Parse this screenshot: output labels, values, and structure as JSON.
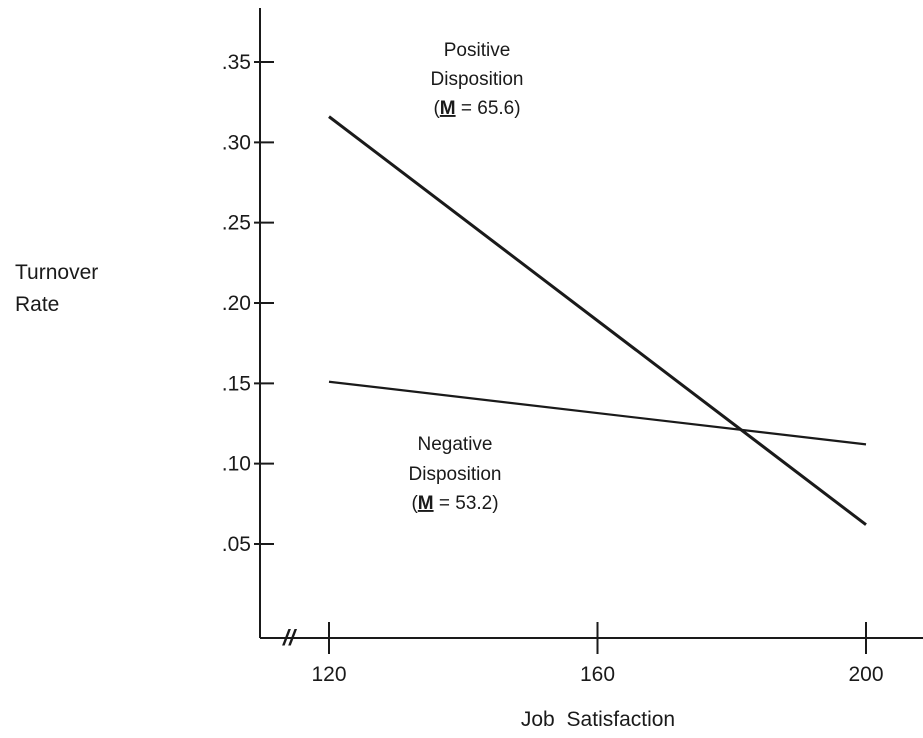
{
  "chart_data": {
    "type": "line",
    "title": "",
    "xlabel": "Job Satisfaction",
    "ylabel": [
      "Turnover",
      "Rate"
    ],
    "xlim": [
      120,
      200
    ],
    "ylim": [
      0.05,
      0.35
    ],
    "x_ticks": [
      {
        "value": 120,
        "label": "120"
      },
      {
        "value": 160,
        "label": "160"
      },
      {
        "value": 200,
        "label": "200"
      }
    ],
    "y_ticks": [
      {
        "value": 0.05,
        "label": ".05"
      },
      {
        "value": 0.1,
        "label": ".10"
      },
      {
        "value": 0.15,
        "label": ".15"
      },
      {
        "value": 0.2,
        "label": ".20"
      },
      {
        "value": 0.25,
        "label": ".25"
      },
      {
        "value": 0.3,
        "label": ".30"
      },
      {
        "value": 0.35,
        "label": ".35"
      }
    ],
    "axis_break_symbol": "//",
    "grid": false,
    "legend": "none",
    "series": [
      {
        "x": [
          120,
          200
        ],
        "values": [
          0.316,
          0.062
        ],
        "annotation": [
          "Positive",
          "Disposition",
          "(",
          "M",
          " = 65.6)"
        ]
      },
      {
        "x": [
          120,
          200
        ],
        "values": [
          0.151,
          0.112
        ],
        "annotation": [
          "Negative",
          "Disposition",
          "(",
          "M",
          " = 53.2)"
        ]
      }
    ]
  }
}
